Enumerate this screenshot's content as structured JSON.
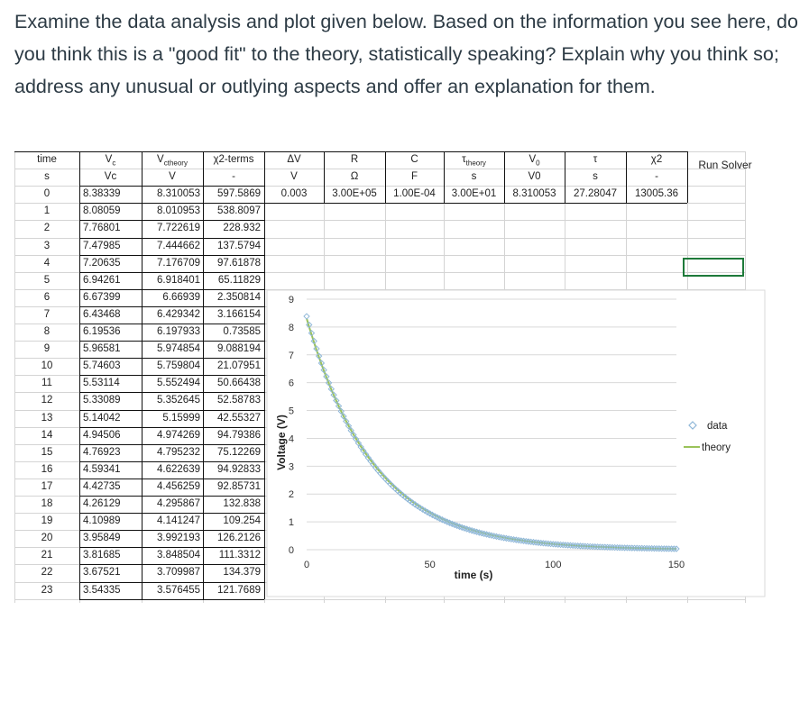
{
  "question": "Examine the data analysis and plot given below. Based on the information you see here, do you think this is a \"good fit\" to the theory, statistically speaking? Explain why you think so; address any unusual or outlying aspects and offer an explanation for them.",
  "table": {
    "headers": [
      "time",
      "Vc",
      "Vctheory",
      "χ2-terms"
    ],
    "units": [
      "s",
      "Vc",
      "V",
      "-"
    ],
    "rows": [
      [
        "0",
        "8.38339",
        "8.310053",
        "597.5869"
      ],
      [
        "1",
        "8.08059",
        "8.010953",
        "538.8097"
      ],
      [
        "2",
        "7.76801",
        "7.722619",
        "228.932"
      ],
      [
        "3",
        "7.47985",
        "7.444662",
        "137.5794"
      ],
      [
        "4",
        "7.20635",
        "7.176709",
        "97.61878"
      ],
      [
        "5",
        "6.94261",
        "6.918401",
        "65.11829"
      ],
      [
        "6",
        "6.67399",
        "6.66939",
        "2.350814"
      ],
      [
        "7",
        "6.43468",
        "6.429342",
        "3.166154"
      ],
      [
        "8",
        "6.19536",
        "6.197933",
        "0.73585"
      ],
      [
        "9",
        "5.96581",
        "5.974854",
        "9.088194"
      ],
      [
        "10",
        "5.74603",
        "5.759804",
        "21.07951"
      ],
      [
        "11",
        "5.53114",
        "5.552494",
        "50.66438"
      ],
      [
        "12",
        "5.33089",
        "5.352645",
        "52.58783"
      ],
      [
        "13",
        "5.14042",
        "5.15999",
        "42.55327"
      ],
      [
        "14",
        "4.94506",
        "4.974269",
        "94.79386"
      ],
      [
        "15",
        "4.76923",
        "4.795232",
        "75.12269"
      ],
      [
        "16",
        "4.59341",
        "4.622639",
        "94.92833"
      ],
      [
        "17",
        "4.42735",
        "4.456259",
        "92.85731"
      ],
      [
        "18",
        "4.26129",
        "4.295867",
        "132.838"
      ],
      [
        "19",
        "4.10989",
        "4.141247",
        "109.254"
      ],
      [
        "20",
        "3.95849",
        "3.992193",
        "126.2126"
      ],
      [
        "21",
        "3.81685",
        "3.848504",
        "111.3312"
      ],
      [
        "22",
        "3.67521",
        "3.709987",
        "134.379"
      ],
      [
        "23",
        "3.54335",
        "3.576455",
        "121.7689"
      ]
    ]
  },
  "params": {
    "headers": [
      "ΔV",
      "R",
      "C",
      "τtheory",
      "V0",
      "τ",
      "χ2"
    ],
    "units": [
      "V",
      "Ω",
      "F",
      "s",
      "V0",
      "s",
      "-"
    ],
    "values": [
      "0.003",
      "3.00E+05",
      "1.00E-04",
      "3.00E+01",
      "8.310053",
      "27.28047",
      "13005.36"
    ]
  },
  "run_solver_label": "Run Solver",
  "chart_data": {
    "type": "scatter",
    "xlabel": "time (s)",
    "ylabel": "Voltage (V)",
    "xlim": [
      0,
      150
    ],
    "ylim": [
      0,
      9
    ],
    "xticks": [
      0,
      50,
      100,
      150
    ],
    "yticks": [
      0,
      1,
      2,
      3,
      4,
      5,
      6,
      7,
      8,
      9
    ],
    "grid": true,
    "legend_placement": "right",
    "series": [
      {
        "name": "data",
        "marker": "diamond",
        "color": "#8fb7d8",
        "V0": 8.38339,
        "tau": 26.8,
        "t_start": 0,
        "t_end": 150,
        "n_points": 151
      },
      {
        "name": "theory",
        "line": true,
        "color": "#9ac25a",
        "V0": 8.310053,
        "tau": 27.28047,
        "t_start": 0,
        "t_end": 150
      }
    ]
  }
}
